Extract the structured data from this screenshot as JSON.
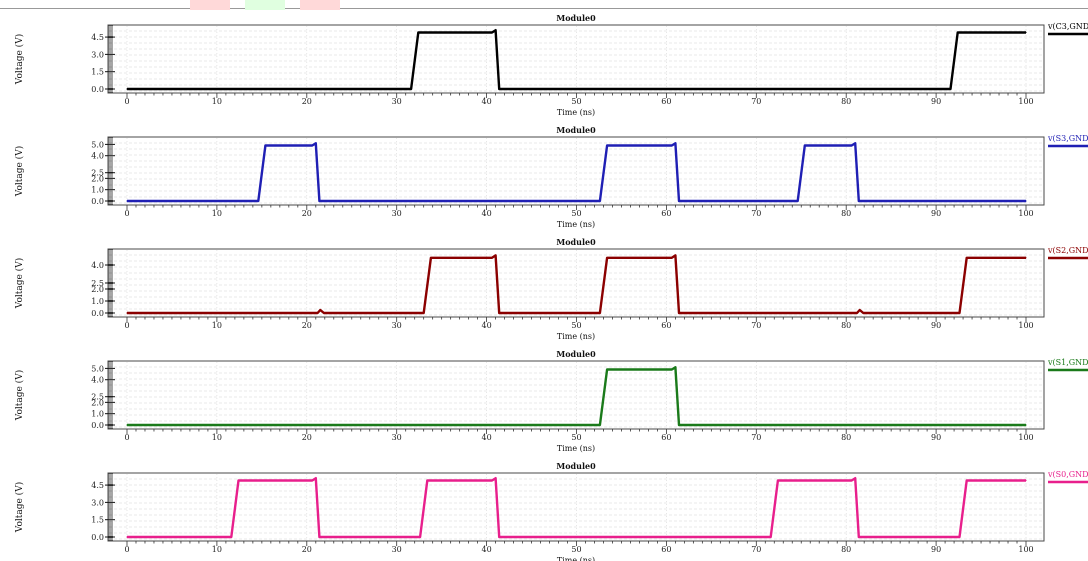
{
  "chart_data": [
    {
      "type": "line",
      "title": "Module0",
      "xlabel": "Time (ns)",
      "ylabel": "Voltage (V)",
      "xlim": [
        0,
        100
      ],
      "ylim": [
        0,
        5.2
      ],
      "xticks": [
        0,
        10,
        20,
        30,
        40,
        50,
        60,
        70,
        80,
        90,
        100
      ],
      "yticks": [
        0.0,
        1.5,
        3.0,
        4.5
      ],
      "ytick_labels": [
        "0.0",
        "1.5",
        "3.0",
        "4.5"
      ],
      "grid": true,
      "legend_position": "right",
      "series": [
        {
          "name": "v(C3,GND)",
          "color": "#000000",
          "x": [
            0,
            31.6,
            32.4,
            40.6,
            41.0,
            41.4,
            91.6,
            92.4,
            100
          ],
          "y": [
            0,
            0,
            4.9,
            4.9,
            5.1,
            0,
            0,
            4.9,
            4.9
          ]
        }
      ]
    },
    {
      "type": "line",
      "title": "Module0",
      "xlabel": "Time (ns)",
      "ylabel": "Voltage (V)",
      "xlim": [
        0,
        100
      ],
      "ylim": [
        0,
        5.3
      ],
      "xticks": [
        0,
        10,
        20,
        30,
        40,
        50,
        60,
        70,
        80,
        90,
        100
      ],
      "yticks": [
        0.0,
        1.0,
        2.0,
        2.5,
        4.0,
        5.0
      ],
      "ytick_labels": [
        "0.0",
        "1.0",
        "2.0",
        "2.5",
        "4.0",
        "5.0"
      ],
      "grid": true,
      "legend_position": "right",
      "series": [
        {
          "name": "v(S3,GND)",
          "color": "#1f1fb4",
          "x": [
            0,
            14.6,
            15.4,
            20.6,
            21.0,
            21.4,
            52.6,
            53.4,
            60.6,
            61.0,
            61.4,
            74.6,
            75.4,
            80.6,
            81.0,
            81.4,
            100
          ],
          "y": [
            0,
            0,
            4.9,
            4.9,
            5.1,
            0,
            0,
            4.9,
            4.9,
            5.1,
            0,
            0,
            4.9,
            4.9,
            5.1,
            0,
            0
          ]
        }
      ]
    },
    {
      "type": "line",
      "title": "Module0",
      "xlabel": "Time (ns)",
      "ylabel": "Voltage (V)",
      "xlim": [
        0,
        100
      ],
      "ylim": [
        0,
        5.0
      ],
      "xticks": [
        0,
        10,
        20,
        30,
        40,
        50,
        60,
        70,
        80,
        90,
        100
      ],
      "yticks": [
        0.0,
        1.0,
        2.0,
        2.5,
        4.0
      ],
      "ytick_labels": [
        "0.0",
        "1.0",
        "2.0",
        "2.5",
        "4.0"
      ],
      "grid": true,
      "legend_position": "right",
      "series": [
        {
          "name": "v(S2,GND)",
          "color": "#8b0000",
          "x": [
            0,
            21.2,
            21.5,
            21.9,
            33.0,
            33.8,
            40.6,
            41.0,
            41.4,
            52.6,
            53.4,
            60.6,
            61.0,
            61.4,
            81.2,
            81.5,
            81.9,
            92.6,
            93.4,
            100
          ],
          "y": [
            0,
            0,
            0.25,
            0,
            0,
            4.6,
            4.6,
            4.8,
            0,
            0,
            4.6,
            4.6,
            4.8,
            0,
            0,
            0.25,
            0,
            0,
            4.6,
            4.6
          ]
        }
      ]
    },
    {
      "type": "line",
      "title": "Module0",
      "xlabel": "Time (ns)",
      "ylabel": "Voltage (V)",
      "xlim": [
        0,
        100
      ],
      "ylim": [
        0,
        5.3
      ],
      "xticks": [
        0,
        10,
        20,
        30,
        40,
        50,
        60,
        70,
        80,
        90,
        100
      ],
      "yticks": [
        0.0,
        1.0,
        2.0,
        2.5,
        4.0,
        5.0
      ],
      "ytick_labels": [
        "0.0",
        "1.0",
        "2.0",
        "2.5",
        "4.0",
        "5.0"
      ],
      "grid": true,
      "legend_position": "right",
      "series": [
        {
          "name": "v(S1,GND)",
          "color": "#1a7a1a",
          "x": [
            0,
            52.6,
            53.4,
            60.6,
            61.0,
            61.4,
            100
          ],
          "y": [
            0,
            0,
            4.9,
            4.9,
            5.1,
            0,
            0
          ]
        }
      ]
    },
    {
      "type": "line",
      "title": "Module0",
      "xlabel": "Time (ns)",
      "ylabel": "Voltage (V)",
      "xlim": [
        0,
        100
      ],
      "ylim": [
        0,
        5.2
      ],
      "xticks": [
        0,
        10,
        20,
        30,
        40,
        50,
        60,
        70,
        80,
        90,
        100
      ],
      "yticks": [
        0.0,
        1.5,
        3.0,
        4.5
      ],
      "ytick_labels": [
        "0.0",
        "1.5",
        "3.0",
        "4.5"
      ],
      "grid": true,
      "legend_position": "right",
      "series": [
        {
          "name": "v(S0,GND)",
          "color": "#e81f8c",
          "x": [
            0,
            11.6,
            12.4,
            20.6,
            21.0,
            21.4,
            32.6,
            33.4,
            40.6,
            41.0,
            41.4,
            71.6,
            72.4,
            80.6,
            81.0,
            81.4,
            92.6,
            93.4,
            100
          ],
          "y": [
            0,
            0,
            4.9,
            4.9,
            5.1,
            0,
            0,
            4.9,
            4.9,
            5.1,
            0,
            0,
            4.9,
            4.9,
            5.1,
            0,
            0,
            4.9,
            4.9
          ]
        }
      ]
    }
  ]
}
